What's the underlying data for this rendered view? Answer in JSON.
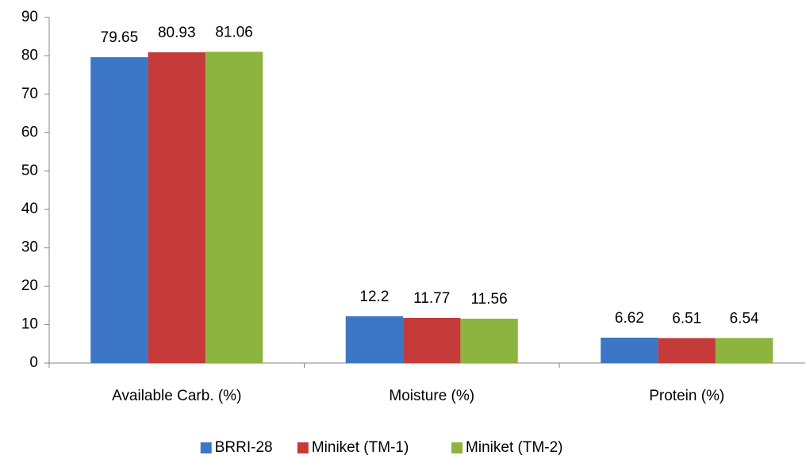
{
  "chart_data": {
    "type": "bar",
    "categories": [
      "Available Carb. (%)",
      "Moisture (%)",
      "Protein (%)"
    ],
    "series": [
      {
        "name": "BRRI-28",
        "color": "#3c76c4",
        "values": [
          79.65,
          12.2,
          6.62
        ]
      },
      {
        "name": "Miniket (TM-1)",
        "color": "#c43b3a",
        "values": [
          80.93,
          11.77,
          6.51
        ]
      },
      {
        "name": "Miniket (TM-2)",
        "color": "#8db43e",
        "values": [
          81.06,
          11.56,
          6.54
        ]
      }
    ],
    "ylim": [
      0,
      90
    ],
    "yticks": [
      0,
      10,
      20,
      30,
      40,
      50,
      60,
      70,
      80,
      90
    ],
    "grid": false,
    "legend": "bottom"
  }
}
